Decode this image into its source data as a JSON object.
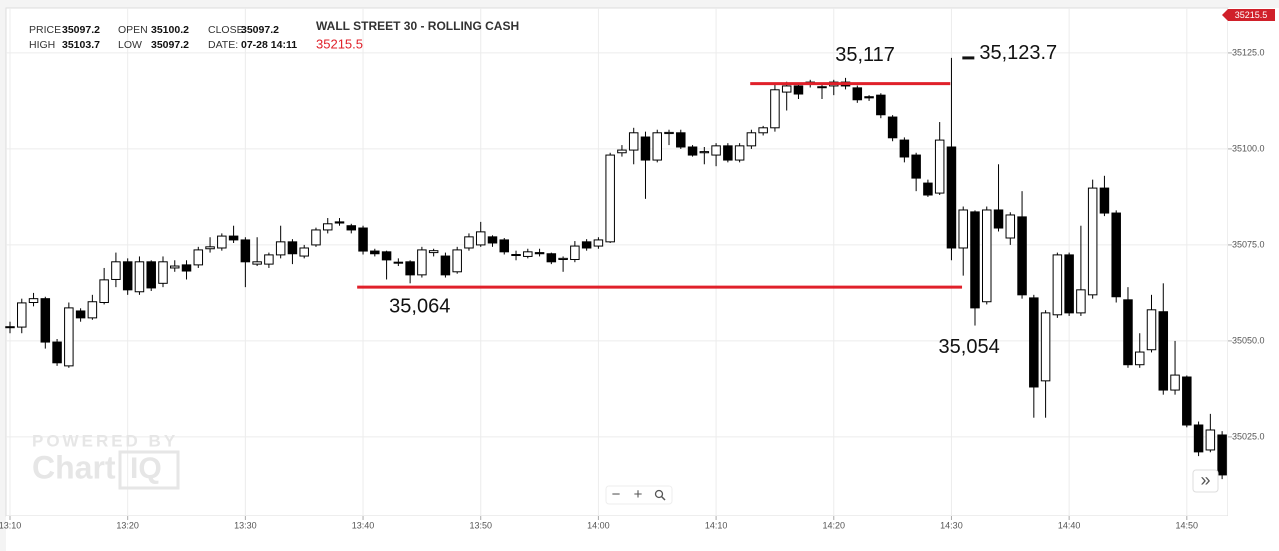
{
  "header": {
    "fields": [
      {
        "label": "PRICE",
        "value": 35097.2
      },
      {
        "label": "OPEN",
        "value": 35100.2
      },
      {
        "label": "CLOSE",
        "value": 35097.2
      },
      {
        "label": "HIGH",
        "value": 35103.7
      },
      {
        "label": "LOW",
        "value": 35097.2
      },
      {
        "label": "DATE:",
        "value": "07-28 14:11"
      }
    ],
    "symbol": "WALL STREET 30 - ROLLING CASH",
    "last": "35215.5",
    "price_tag": "35215.5",
    "watermark_top": "POWERED BY",
    "watermark_brand": "Chart",
    "watermark_suffix": "IQ",
    "zoom_out": "−",
    "zoom_in": "+",
    "forward": "»"
  },
  "chart_data": {
    "type": "candlestick",
    "x": [
      790,
      791,
      792,
      793,
      794,
      795,
      796,
      797,
      798,
      799,
      800,
      801,
      802,
      803,
      804,
      805,
      806,
      807,
      808,
      809,
      810,
      811,
      812,
      813,
      814,
      815,
      816,
      817,
      818,
      819,
      820,
      821,
      822,
      823,
      824,
      825,
      826,
      827,
      828,
      829,
      830,
      831,
      832,
      833,
      834,
      835,
      836,
      837,
      838,
      839,
      840,
      841,
      842,
      843,
      844,
      845,
      846,
      847,
      848,
      849,
      850,
      851,
      852,
      853,
      854,
      855,
      856,
      857,
      858,
      859,
      860,
      861,
      862,
      863,
      864,
      865,
      866,
      867,
      868,
      869,
      870,
      871,
      872,
      873,
      874,
      875,
      876,
      877,
      878,
      879,
      880,
      881,
      882,
      883,
      884,
      885,
      886,
      887,
      888,
      889,
      890,
      891,
      892,
      893
    ],
    "open": [
      35053.5,
      35053.6,
      35060.0,
      35061.0,
      35049.7,
      35043.5,
      35057.8,
      35056.0,
      35060.0,
      35066.0,
      35070.6,
      35062.8,
      35070.6,
      35065.0,
      35069.0,
      35069.8,
      35069.8,
      35074.0,
      35074.2,
      35077.3,
      35076.3,
      35070.0,
      35070.0,
      35072.4,
      35075.8,
      35072.1,
      35075.0,
      35078.9,
      35081.0,
      35080.0,
      35079.4,
      35073.4,
      35073.2,
      35070.5,
      35070.6,
      35067.2,
      35073.0,
      35072.1,
      35068.0,
      35074.2,
      35075.0,
      35077.1,
      35076.3,
      35072.5,
      35072.0,
      35073.0,
      35072.7,
      35071.2,
      35071.2,
      35075.8,
      35074.7,
      35075.8,
      35099.0,
      35099.7,
      35103.1,
      35097.1,
      35104.0,
      35104.2,
      35100.5,
      35099.0,
      35098.4,
      35100.8,
      35097.1,
      35100.8,
      35104.2,
      35105.5,
      35114.8,
      35116.4,
      35117.4,
      35116.2,
      35116.4,
      35117.4,
      35115.9,
      35113.6,
      35114.0,
      35108.3,
      35102.3,
      35098.4,
      35091.1,
      35088.5,
      35100.5,
      35074.2,
      35083.6,
      35060.2,
      35084.1,
      35076.8,
      35082.3,
      35061.2,
      35039.6,
      35056.8,
      35072.4,
      35057.3,
      35062.0,
      35089.8,
      35083.3,
      35060.7,
      35043.8,
      35047.7,
      35057.6,
      35037.2,
      35040.6,
      35028.1,
      35021.6,
      35025.5
    ],
    "high": [
      35055.0,
      35061.0,
      35062.5,
      35061.5,
      35050.5,
      35060.0,
      35058.5,
      35062.0,
      35069.0,
      35073.0,
      35071.5,
      35072.0,
      35071.0,
      35072.0,
      35071.0,
      35071.0,
      35074.5,
      35077.0,
      35078.0,
      35080.0,
      35077.0,
      35077.0,
      35073.0,
      35080.0,
      35076.5,
      35075.0,
      35079.5,
      35082.0,
      35082.0,
      35080.5,
      35080.0,
      35074.0,
      35073.5,
      35071.5,
      35071.0,
      35074.5,
      35074.0,
      35073.0,
      35074.5,
      35078.0,
      35081.0,
      35077.5,
      35076.8,
      35073.5,
      35074.0,
      35074.0,
      35073.0,
      35072.0,
      35076.0,
      35076.5,
      35077.0,
      35099.0,
      35101.0,
      35105.5,
      35104.5,
      35105.0,
      35105.0,
      35105.0,
      35101.0,
      35100.5,
      35101.5,
      35101.5,
      35101.5,
      35105.0,
      35106.0,
      35117.0,
      35117.5,
      35117.0,
      35118.0,
      35117.0,
      35118.0,
      35118.5,
      35116.5,
      35114.0,
      35114.5,
      35108.8,
      35103.0,
      35099.0,
      35092.0,
      35107.0,
      35123.7,
      35085.0,
      35084.0,
      35085.0,
      35096.0,
      35083.5,
      35089.0,
      35062.0,
      35058.0,
      35073.0,
      35073.0,
      35080.0,
      35092.0,
      35093.0,
      35084.0,
      35064.0,
      35052.0,
      35062.0,
      35065.0,
      35050.0,
      35041.0,
      35029.0,
      35031.0,
      35026.5
    ],
    "low": [
      35052.0,
      35052.0,
      35059.0,
      35048.0,
      35043.5,
      35043.0,
      35055.0,
      35055.5,
      35059.5,
      35064.0,
      35062.0,
      35062.0,
      35063.0,
      35064.0,
      35068.0,
      35066.0,
      35069.0,
      35073.0,
      35073.5,
      35075.5,
      35064.0,
      35069.5,
      35069.0,
      35071.5,
      35070.0,
      35071.5,
      35074.5,
      35078.0,
      35080.0,
      35078.0,
      35072.5,
      35072.0,
      35066.0,
      35069.5,
      35065.0,
      35066.5,
      35072.0,
      35066.5,
      35067.5,
      35073.5,
      35074.5,
      35074.5,
      35072.5,
      35071.0,
      35071.5,
      35072.0,
      35070.0,
      35068.0,
      35070.5,
      35073.5,
      35074.0,
      35075.5,
      35098.0,
      35096.0,
      35087.0,
      35096.5,
      35101.0,
      35100.0,
      35098.0,
      35096.0,
      35095.5,
      35096.5,
      35096.5,
      35100.0,
      35103.5,
      35104.5,
      35110.0,
      35113.0,
      35116.0,
      35113.0,
      35114.0,
      35115.5,
      35112.0,
      35112.5,
      35108.0,
      35102.0,
      35096.5,
      35089.0,
      35087.5,
      35088.0,
      35071.0,
      35067.0,
      35054.0,
      35059.5,
      35078.5,
      35075.0,
      35061.0,
      35030.0,
      35030.0,
      35056.0,
      35056.5,
      35056.5,
      35061.0,
      35082.5,
      35060.0,
      35043.0,
      35043.0,
      35047.0,
      35036.0,
      35036.0,
      35027.5,
      35020.0,
      35021.0,
      35014.0
    ],
    "close": [
      35053.7,
      35059.9,
      35061.0,
      35049.7,
      35044.3,
      35058.6,
      35056.0,
      35060.2,
      35065.9,
      35070.6,
      35063.3,
      35070.6,
      35063.8,
      35070.6,
      35069.5,
      35068.2,
      35073.7,
      35074.5,
      35077.3,
      35076.3,
      35070.6,
      35070.6,
      35072.4,
      35075.8,
      35072.7,
      35074.2,
      35078.9,
      35080.5,
      35080.7,
      35078.9,
      35073.4,
      35072.7,
      35071.1,
      35070.3,
      35067.2,
      35073.7,
      35073.5,
      35067.2,
      35073.7,
      35077.1,
      35078.4,
      35075.5,
      35073.2,
      35072.3,
      35073.2,
      35072.7,
      35070.6,
      35071.5,
      35074.7,
      35074.2,
      35076.3,
      35098.4,
      35099.7,
      35104.2,
      35097.1,
      35104.2,
      35104.3,
      35100.5,
      35098.4,
      35099.3,
      35100.8,
      35097.1,
      35100.8,
      35104.2,
      35105.5,
      35115.4,
      35116.4,
      35114.3,
      35116.9,
      35116.0,
      35117.4,
      35116.4,
      35112.8,
      35113.3,
      35108.9,
      35102.9,
      35097.9,
      35092.4,
      35088.0,
      35102.3,
      35074.2,
      35084.1,
      35058.6,
      35084.1,
      35079.4,
      35082.8,
      35062.0,
      35038.0,
      35057.3,
      35072.4,
      35057.3,
      35063.3,
      35089.8,
      35083.3,
      35061.5,
      35043.8,
      35047.1,
      35058.1,
      35037.2,
      35041.1,
      35028.1,
      35021.1,
      35026.8,
      35015.1
    ],
    "up_color": "#ffffff",
    "down_color": "#000000",
    "edge_color": "#000000",
    "xlim": [
      789.66,
      893.5
    ],
    "xticks": [
      {
        "value": 790,
        "label": "13:10"
      },
      {
        "value": 800,
        "label": "13:20"
      },
      {
        "value": 810,
        "label": "13:30"
      },
      {
        "value": 820,
        "label": "13:40"
      },
      {
        "value": 830,
        "label": "13:50"
      },
      {
        "value": 840,
        "label": "14:00"
      },
      {
        "value": 850,
        "label": "14:10"
      },
      {
        "value": 860,
        "label": "14:20"
      },
      {
        "value": 870,
        "label": "14:30"
      },
      {
        "value": 880,
        "label": "14:40"
      },
      {
        "value": 890,
        "label": "14:50"
      }
    ],
    "ylim": [
      35004.4,
      35136.7
    ],
    "yticks": [
      {
        "value": 35025,
        "label": "35025.0"
      },
      {
        "value": 35050,
        "label": "35050.0"
      },
      {
        "value": 35075,
        "label": "35075.0"
      },
      {
        "value": 35100,
        "label": "35100.0"
      },
      {
        "value": 35125,
        "label": "35125.0"
      }
    ],
    "grid": true,
    "levels": [
      {
        "value": 35064,
        "label": "35,064",
        "from": 819.5,
        "to": 870.9,
        "color": "#e0202a"
      },
      {
        "value": 35117,
        "label": "35,117",
        "from": 852.9,
        "to": 869.9,
        "color": "#e0202a"
      }
    ],
    "annotations": [
      {
        "value": 35123.7,
        "label": "35,123.7",
        "x": 870.5
      },
      {
        "value": 35054,
        "label": "35,054",
        "x": 871.5
      }
    ]
  }
}
